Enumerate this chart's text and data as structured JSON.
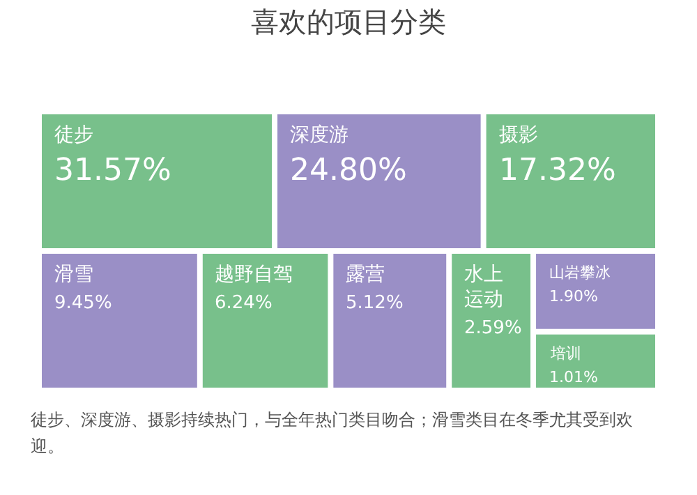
{
  "chart_data": {
    "type": "other",
    "title": "喜欢的项目分类",
    "categories": [
      "徒步",
      "深度游",
      "摄影",
      "滑雪",
      "越野自驾",
      "露营",
      "水上运动",
      "山岩攀冰",
      "培训"
    ],
    "values": [
      31.57,
      24.8,
      17.32,
      9.45,
      6.24,
      5.12,
      2.59,
      1.9,
      1.01
    ],
    "value_labels": [
      "31.57%",
      "24.80%",
      "17.32%",
      "9.45%",
      "6.24%",
      "5.12%",
      "2.59%",
      "1.90%",
      "1.01%"
    ],
    "colors": [
      "#78c08b",
      "#9a8fc6",
      "#78c08b",
      "#9a8fc6",
      "#78c08b",
      "#9a8fc6",
      "#78c08b",
      "#9a8fc6",
      "#78c08b"
    ],
    "annotations": [
      "徒步、深度游、摄影持续热门，与全年热门类目吻合；滑雪类目在冬季尤其受到欢迎。"
    ]
  }
}
